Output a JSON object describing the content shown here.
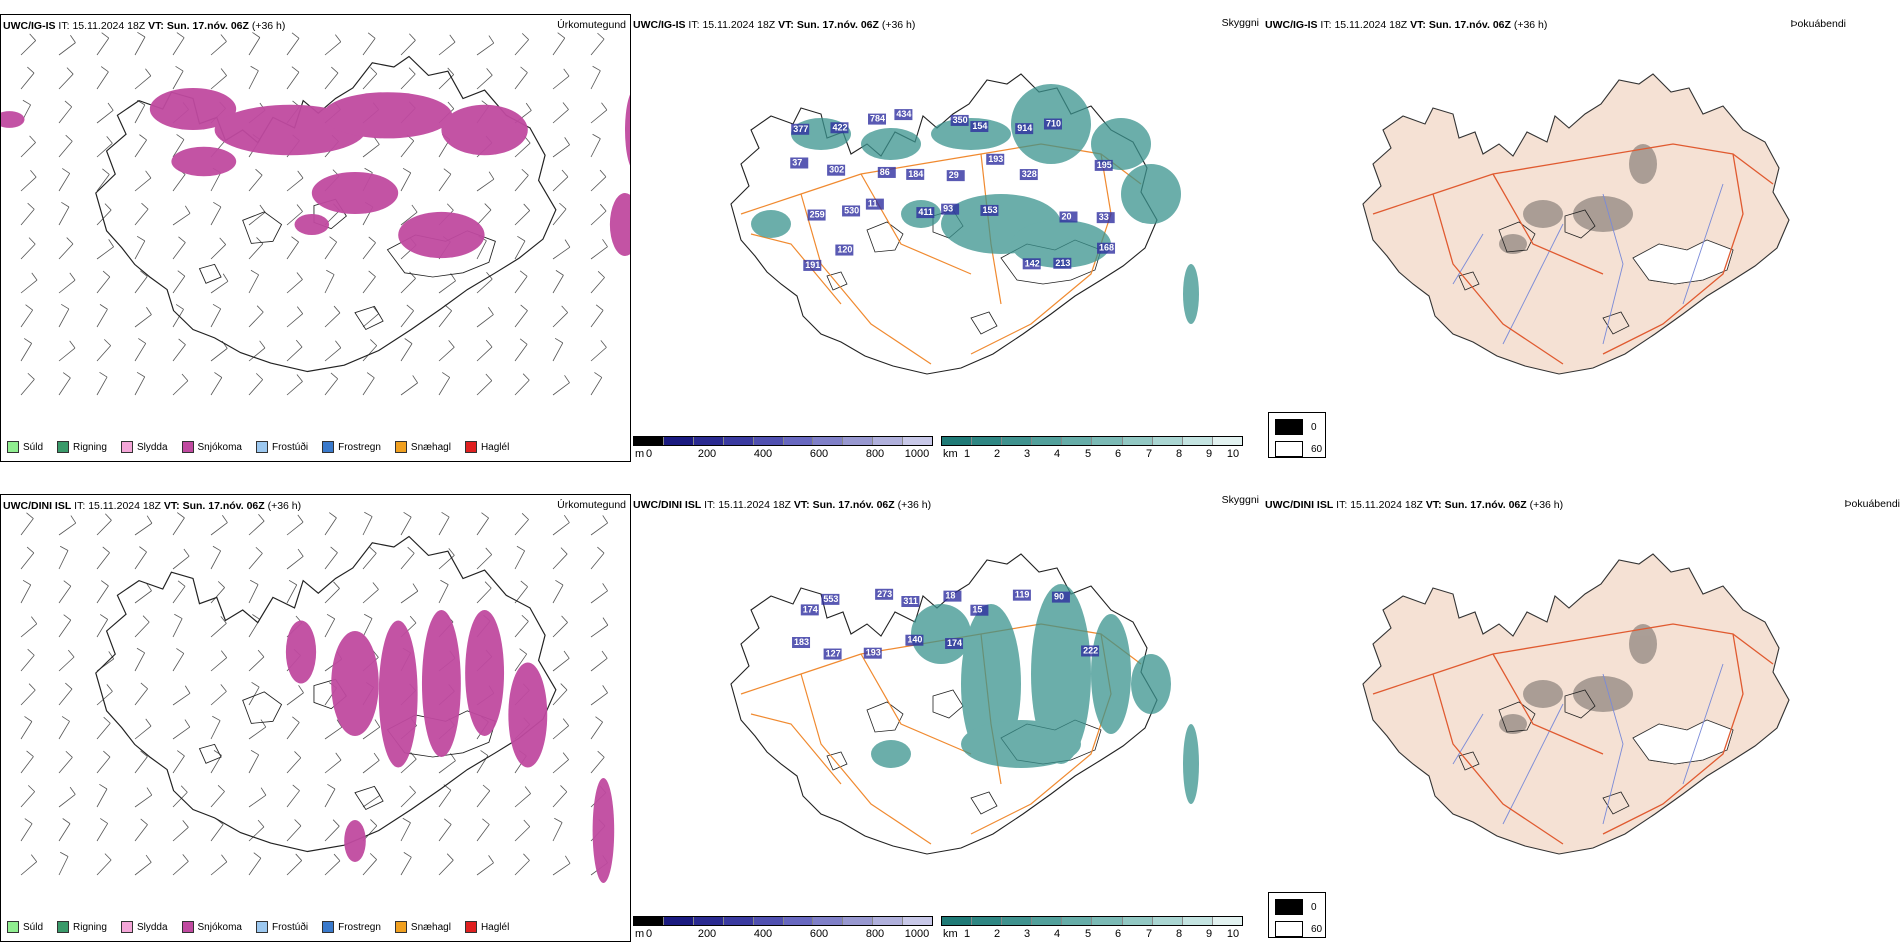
{
  "rows": [
    {
      "model": "UWC/IG-IS",
      "it_label": "IT:",
      "it_value": "15.11.2024 18Z",
      "vt_label": "VT:",
      "vt_value": "Sun. 17.nóv. 06Z",
      "lead": "(+36 h)",
      "titles": [
        "Úrkomutegund",
        "Skyggni",
        "Þokuábendi"
      ],
      "visibility_labels": [
        {
          "v": "377"
        },
        {
          "v": "422"
        },
        {
          "v": "784"
        },
        {
          "v": "434"
        },
        {
          "v": "350"
        },
        {
          "v": "154"
        },
        {
          "v": "914"
        },
        {
          "v": "710"
        },
        {
          "v": "195"
        },
        {
          "v": "37"
        },
        {
          "v": "302"
        },
        {
          "v": "86"
        },
        {
          "v": "184"
        },
        {
          "v": "29"
        },
        {
          "v": "193"
        },
        {
          "v": "328"
        },
        {
          "v": "20"
        },
        {
          "v": "33"
        },
        {
          "v": "259"
        },
        {
          "v": "530"
        },
        {
          "v": "11"
        },
        {
          "v": "411"
        },
        {
          "v": "93"
        },
        {
          "v": "153"
        },
        {
          "v": "142"
        },
        {
          "v": "213"
        },
        {
          "v": "168"
        },
        {
          "v": "191"
        },
        {
          "v": "120"
        }
      ]
    },
    {
      "model": "UWC/DINI ISL",
      "it_label": "IT:",
      "it_value": "15.11.2024 18Z",
      "vt_label": "VT:",
      "vt_value": "Sun. 17.nóv. 06Z",
      "lead": "(+36 h)",
      "titles": [
        "Úrkomutegund",
        "Skyggni",
        "Þokuábendi"
      ],
      "visibility_labels": [
        {
          "v": "174"
        },
        {
          "v": "553"
        },
        {
          "v": "273"
        },
        {
          "v": "311"
        },
        {
          "v": "18"
        },
        {
          "v": "15"
        },
        {
          "v": "119"
        },
        {
          "v": "90"
        },
        {
          "v": "222"
        },
        {
          "v": "183"
        },
        {
          "v": "127"
        },
        {
          "v": "193"
        },
        {
          "v": "140"
        },
        {
          "v": "174"
        }
      ]
    }
  ],
  "precip_legend": [
    {
      "label": "Súld",
      "color": "#90ee90"
    },
    {
      "label": "Rigning",
      "color": "#3a9a6a"
    },
    {
      "label": "Slydda",
      "color": "#f4a6d8"
    },
    {
      "label": "Snjókoma",
      "color": "#c04aa0"
    },
    {
      "label": "Frostúði",
      "color": "#9cc8f0"
    },
    {
      "label": "Frostregn",
      "color": "#3a7acc"
    },
    {
      "label": "Snæhagl",
      "color": "#f0a020"
    },
    {
      "label": "Haglél",
      "color": "#e02020"
    }
  ],
  "ceiling_scale": {
    "unit": "m",
    "ticks": [
      "0",
      "200",
      "400",
      "600",
      "800",
      "1000"
    ],
    "colors": [
      "#000000",
      "#1a1a80",
      "#2a2a90",
      "#3a3aa0",
      "#5050b0",
      "#6868c0",
      "#8080c8",
      "#9898d0",
      "#b0b0dc",
      "#c8c8e8"
    ]
  },
  "visibility_scale": {
    "unit": "km",
    "ticks": [
      "1",
      "2",
      "3",
      "4",
      "5",
      "6",
      "7",
      "8",
      "9",
      "10"
    ],
    "colors": [
      "#1f7a76",
      "#2e8682",
      "#3f928e",
      "#52a09b",
      "#66ada8",
      "#7bbab5",
      "#92c8c3",
      "#aad6d2",
      "#c4e4e1",
      "#e2f2f0"
    ]
  },
  "fog_legend": [
    {
      "label": "0",
      "color": "#000000"
    },
    {
      "label": "60",
      "color": "#ffffff"
    }
  ],
  "colors": {
    "snow": "#c04aa0",
    "low_vis": "#3a938e",
    "ceiling": "#3030a0",
    "roads": "#f08a30",
    "land_fog": "#f5e1d4",
    "roads_fog": "#e05a30",
    "rivers": "#7a8ad8"
  }
}
